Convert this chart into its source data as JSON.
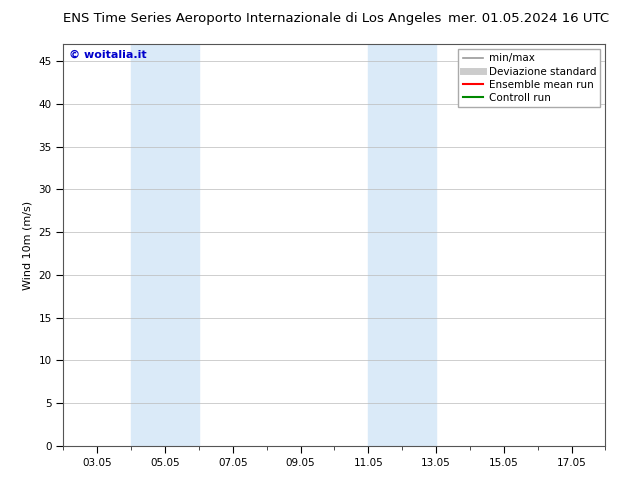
{
  "title_left": "ENS Time Series Aeroporto Internazionale di Los Angeles",
  "title_right": "mer. 01.05.2024 16 UTC",
  "ylabel": "Wind 10m (m/s)",
  "watermark": "© woitalia.it",
  "watermark_color": "#0000cc",
  "xlim_start": 2.0,
  "xlim_end": 18.0,
  "ylim_min": 0,
  "ylim_max": 47,
  "yticks": [
    0,
    5,
    10,
    15,
    20,
    25,
    30,
    35,
    40,
    45
  ],
  "xtick_labels": [
    "03.05",
    "05.05",
    "07.05",
    "09.05",
    "11.05",
    "13.05",
    "15.05",
    "17.05"
  ],
  "xtick_positions": [
    3,
    5,
    7,
    9,
    11,
    13,
    15,
    17
  ],
  "shaded_bands": [
    {
      "x_start": 4.0,
      "x_end": 6.0
    },
    {
      "x_start": 11.0,
      "x_end": 13.0
    }
  ],
  "shade_color": "#daeaf8",
  "background_color": "#ffffff",
  "grid_color": "#bbbbbb",
  "legend_entries": [
    {
      "label": "min/max",
      "color": "#999999",
      "lw": 1.2
    },
    {
      "label": "Deviazione standard",
      "color": "#cccccc",
      "lw": 5
    },
    {
      "label": "Ensemble mean run",
      "color": "#ff0000",
      "lw": 1.5
    },
    {
      "label": "Controll run",
      "color": "#008800",
      "lw": 1.5
    }
  ],
  "title_fontsize": 9.5,
  "tick_fontsize": 7.5,
  "ylabel_fontsize": 8,
  "legend_fontsize": 7.5,
  "watermark_fontsize": 8
}
